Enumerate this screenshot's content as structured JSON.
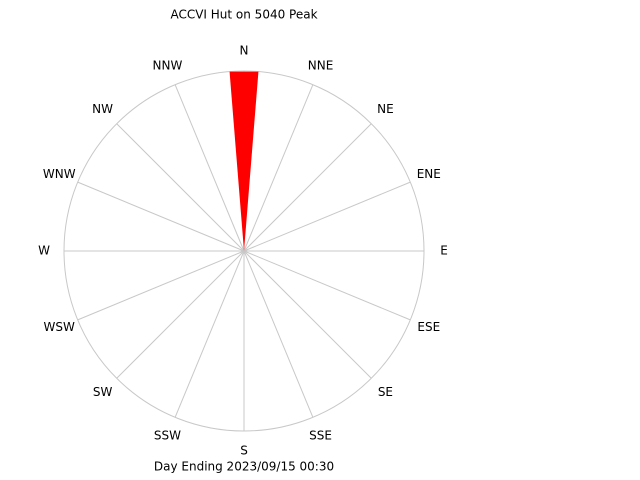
{
  "chart_data": {
    "type": "rose",
    "title": "ACCVI Hut on 5040 Peak",
    "footer": "Day Ending 2023/09/15 00:30",
    "categories": [
      "N",
      "NNE",
      "NE",
      "ENE",
      "E",
      "ESE",
      "SE",
      "SSE",
      "S",
      "SSW",
      "SW",
      "WSW",
      "W",
      "WNW",
      "NW",
      "NNW"
    ],
    "values": [
      100,
      0,
      0,
      0,
      0,
      0,
      0,
      0,
      0,
      0,
      0,
      0,
      0,
      0,
      0,
      0
    ],
    "color": "#ff0000",
    "rlim": [
      0,
      100
    ]
  }
}
